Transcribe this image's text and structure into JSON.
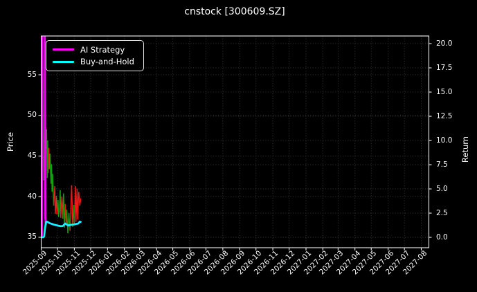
{
  "window": {
    "background": "#000000"
  },
  "chart_data": {
    "type": "line",
    "title": "cnstock [300609.SZ]",
    "left_axis": {
      "label": "Price",
      "tick_labels": [
        "35",
        "40",
        "45",
        "50",
        "55"
      ],
      "tick_values": [
        35,
        40,
        45,
        50,
        55
      ],
      "range": [
        33.72,
        59.77
      ]
    },
    "right_axis": {
      "label": "Return",
      "tick_labels": [
        "0.0",
        "2.5",
        "5.0",
        "7.5",
        "10.0",
        "12.5",
        "15.0",
        "17.5",
        "20.0"
      ],
      "tick_values": [
        0,
        2.5,
        5,
        7.5,
        10,
        12.5,
        15,
        17.5,
        20
      ],
      "range": [
        -1.07,
        20.79
      ]
    },
    "x_axis": {
      "tick_labels": [
        "2025-09",
        "2025-10",
        "2025-11",
        "2025-12",
        "2026-01",
        "2026-02",
        "2026-03",
        "2026-04",
        "2026-05",
        "2026-06",
        "2026-07",
        "2026-08",
        "2026-09",
        "2026-10",
        "2026-11",
        "2026-12",
        "2027-01",
        "2027-02",
        "2027-03",
        "2027-04",
        "2027-05",
        "2027-06",
        "2027-07",
        "2027-08"
      ],
      "tick_day_offsets": [
        0,
        30,
        61,
        91,
        122,
        153,
        181,
        212,
        242,
        273,
        303,
        334,
        365,
        395,
        426,
        456,
        487,
        518,
        546,
        577,
        607,
        638,
        668,
        699
      ],
      "range_days": [
        0,
        713
      ],
      "label_rotation_deg": 45
    },
    "grid": {
      "on": true,
      "style": "dotted",
      "color": "#3a3a3a"
    },
    "legend": {
      "position": "upper-left",
      "entries": [
        {
          "label": "AI Strategy",
          "color": "#ff00ff"
        },
        {
          "label": "Buy-and-Hold",
          "color": "#00ffff"
        }
      ]
    },
    "series": {
      "price": {
        "name": "Price (daily, colored by move)",
        "axis": "left",
        "segment_colors": {
          "g": "#0fa30f",
          "r": "#ef1a1a"
        },
        "points": [
          [
            0,
            36.3,
            null
          ],
          [
            1,
            45.5,
            "g"
          ],
          [
            2,
            53.0,
            "g"
          ],
          [
            3,
            59.8,
            "g"
          ],
          [
            4,
            48.0,
            "g"
          ],
          [
            5,
            42.0,
            "g"
          ],
          [
            6,
            45.0,
            "g"
          ],
          [
            7,
            43.8,
            "g"
          ],
          [
            8,
            48.9,
            "r"
          ],
          [
            9,
            45.9,
            "r"
          ],
          [
            10,
            48.3,
            "g"
          ],
          [
            11,
            42.3,
            "g"
          ],
          [
            12,
            46.9,
            "g"
          ],
          [
            13,
            42.9,
            "g"
          ],
          [
            14,
            46.0,
            "r"
          ],
          [
            15,
            43.4,
            "r"
          ],
          [
            16,
            45.3,
            "g"
          ],
          [
            18,
            41.6,
            "g"
          ],
          [
            19,
            44.0,
            "g"
          ],
          [
            20,
            40.6,
            "g"
          ],
          [
            21,
            42.8,
            "g"
          ],
          [
            23,
            38.9,
            "g"
          ],
          [
            25,
            41.3,
            "r"
          ],
          [
            26,
            37.9,
            "r"
          ],
          [
            28,
            40.1,
            "r"
          ],
          [
            29,
            37.8,
            "g"
          ],
          [
            31,
            39.6,
            "r"
          ],
          [
            32,
            37.5,
            "g"
          ],
          [
            34,
            38.8,
            "g"
          ],
          [
            35,
            40.8,
            "g"
          ],
          [
            36,
            37.4,
            "g"
          ],
          [
            38,
            40.0,
            "r"
          ],
          [
            40,
            37.3,
            "r"
          ],
          [
            41,
            40.4,
            "g"
          ],
          [
            43,
            36.2,
            "g"
          ],
          [
            44,
            39.1,
            "g"
          ],
          [
            46,
            36.5,
            "r"
          ],
          [
            47,
            38.4,
            "r"
          ],
          [
            49,
            35.5,
            "g"
          ],
          [
            51,
            38.0,
            "g"
          ],
          [
            53,
            35.8,
            "g"
          ],
          [
            56,
            41.4,
            "r"
          ],
          [
            58,
            36.3,
            "r"
          ],
          [
            60,
            39.0,
            "g"
          ],
          [
            61,
            36.7,
            "g"
          ],
          [
            63,
            41.3,
            "r"
          ],
          [
            64,
            36.9,
            "r"
          ],
          [
            66,
            41.0,
            "r"
          ],
          [
            67,
            37.2,
            "r"
          ],
          [
            69,
            40.6,
            "r"
          ],
          [
            71,
            38.9,
            "r"
          ],
          [
            73,
            39.8,
            "r"
          ]
        ]
      },
      "ai_strategy": {
        "name": "AI Strategy",
        "axis": "right",
        "color": "#ff00ff",
        "line_width": 2.8,
        "points": [
          [
            0,
            0
          ],
          [
            1.5,
            0.2
          ],
          [
            2.2,
            20.9
          ],
          [
            6.8,
            20.9
          ],
          [
            7.6,
            2.0
          ],
          [
            8.5,
            1.3
          ],
          [
            10,
            1.62
          ],
          [
            13,
            1.55
          ],
          [
            16,
            1.45
          ],
          [
            20,
            1.38
          ],
          [
            24,
            1.3
          ],
          [
            28,
            1.25
          ],
          [
            32,
            1.2
          ],
          [
            36,
            1.15
          ],
          [
            40,
            1.18
          ],
          [
            44,
            1.43
          ],
          [
            47,
            1.32
          ],
          [
            50,
            1.22
          ],
          [
            53,
            1.28
          ],
          [
            56,
            1.3
          ],
          [
            60,
            1.33
          ],
          [
            64,
            1.38
          ],
          [
            68,
            1.42
          ],
          [
            71,
            1.62
          ],
          [
            74,
            1.55
          ]
        ]
      },
      "buy_and_hold": {
        "name": "Buy-and-Hold",
        "axis": "right",
        "color": "#00ffff",
        "line_width": 2.6,
        "points": [
          [
            0,
            0
          ],
          [
            4,
            0
          ],
          [
            5.5,
            0.1
          ],
          [
            7,
            0.9
          ],
          [
            8.5,
            1.55
          ],
          [
            10,
            1.62
          ],
          [
            13,
            1.55
          ],
          [
            16,
            1.45
          ],
          [
            20,
            1.38
          ],
          [
            24,
            1.3
          ],
          [
            28,
            1.25
          ],
          [
            32,
            1.2
          ],
          [
            36,
            1.15
          ],
          [
            40,
            1.18
          ],
          [
            44,
            1.43
          ],
          [
            47,
            1.32
          ],
          [
            50,
            1.22
          ],
          [
            53,
            1.28
          ],
          [
            56,
            1.3
          ],
          [
            60,
            1.33
          ],
          [
            64,
            1.38
          ],
          [
            68,
            1.42
          ],
          [
            71,
            1.62
          ],
          [
            74,
            1.55
          ]
        ]
      }
    }
  }
}
